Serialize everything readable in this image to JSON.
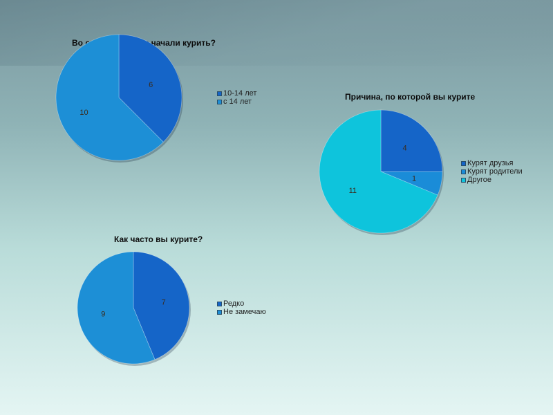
{
  "chart_data": [
    {
      "type": "pie",
      "title": "Во сколько лет вы начали курить?",
      "categories": [
        "10-14 лет",
        "с 14 лет"
      ],
      "values": [
        6,
        10
      ],
      "colors": [
        "#1565c8",
        "#1d8fd6"
      ],
      "legend": "right"
    },
    {
      "type": "pie",
      "title": "Причина, по которой вы курите",
      "categories": [
        "Курят друзья",
        "Курят родители",
        "Другое"
      ],
      "values": [
        4,
        1,
        11
      ],
      "colors": [
        "#1565c8",
        "#1a8cd8",
        "#0ec4dc"
      ],
      "legend": "right"
    },
    {
      "type": "pie",
      "title": "Как часто вы курите?",
      "categories": [
        "Редко",
        "Не замечаю"
      ],
      "values": [
        7,
        9
      ],
      "colors": [
        "#1565c8",
        "#1d8fd6"
      ],
      "legend": "right"
    }
  ]
}
